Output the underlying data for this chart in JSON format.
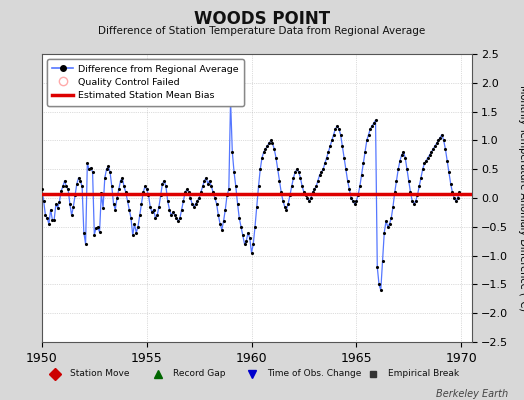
{
  "title": "WOODS POINT",
  "subtitle": "Difference of Station Temperature Data from Regional Average",
  "ylabel": "Monthly Temperature Anomaly Difference (°C)",
  "xlim": [
    1950,
    1970.5
  ],
  "ylim": [
    -2.5,
    2.5
  ],
  "yticks": [
    -2.5,
    -2,
    -1.5,
    -1,
    -0.5,
    0,
    0.5,
    1,
    1.5,
    2,
    2.5
  ],
  "xticks": [
    1950,
    1955,
    1960,
    1965,
    1970
  ],
  "bias_y": 0.07,
  "bg_color": "#d8d8d8",
  "plot_bg": "#ffffff",
  "line_color": "#5577ff",
  "dot_color": "#000000",
  "bias_color": "#dd0000",
  "watermark": "Berkeley Earth",
  "legend1_label": "Difference from Regional Average",
  "legend2_label": "Quality Control Failed",
  "legend3_label": "Estimated Station Mean Bias",
  "bot_label1": "Station Move",
  "bot_label2": "Record Gap",
  "bot_label3": "Time of Obs. Change",
  "bot_label4": "Empirical Break"
}
